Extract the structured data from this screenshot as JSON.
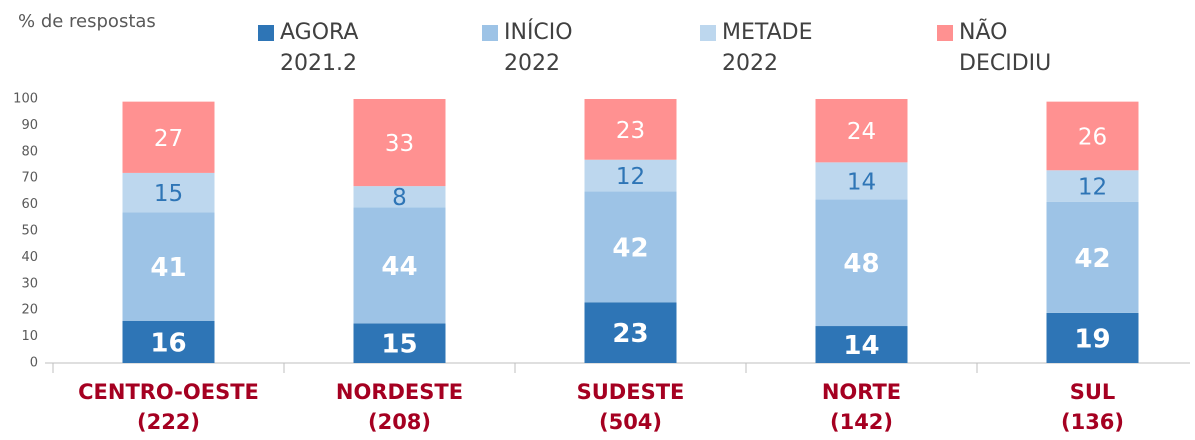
{
  "chart_data": {
    "type": "stacked_bar",
    "y_axis_label": "% de respostas",
    "categories": [
      "CENTRO-OESTE (222)",
      "NORDESTE (208)",
      "SUDESTE (504)",
      "NORTE (142)",
      "SUL (136)"
    ],
    "series": [
      {
        "name": "AGORA 2021.2",
        "color": "#2e75b6",
        "label_color": "#ffffff",
        "values": [
          16,
          15,
          23,
          14,
          19
        ]
      },
      {
        "name": "INÍCIO 2022",
        "color": "#9dc3e6",
        "label_color": "#ffffff",
        "values": [
          41,
          44,
          42,
          48,
          42
        ]
      },
      {
        "name": "METADE 2022",
        "color": "#bdd7ee",
        "label_color": "#2e75b6",
        "values": [
          15,
          8,
          12,
          14,
          12
        ]
      },
      {
        "name": "NÃO DECIDIU",
        "color": "#ff9191",
        "label_color": "#ffffff",
        "values": [
          27,
          33,
          23,
          24,
          26
        ]
      }
    ],
    "ylim": [
      0,
      100
    ],
    "yticks": [
      0,
      10,
      20,
      30,
      40,
      50,
      60,
      70,
      80,
      90,
      100
    ]
  }
}
